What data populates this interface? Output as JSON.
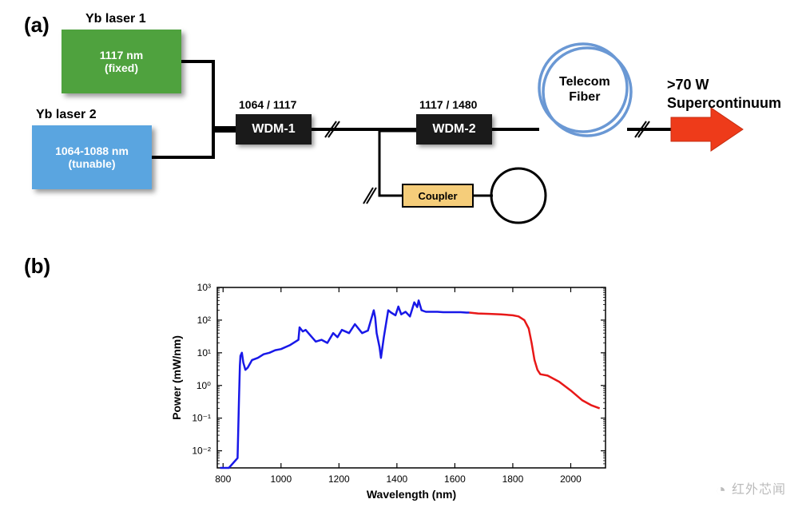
{
  "panel_a": {
    "label": "(a)",
    "laser1": {
      "title": "Yb laser 1",
      "line1": "1117 nm",
      "line2": "(fixed)",
      "color": "#4fa23e"
    },
    "laser2": {
      "title": "Yb laser 2",
      "line1": "1064-1088 nm",
      "line2": "(tunable)",
      "color": "#5aa5e0"
    },
    "wdm1": {
      "label": "WDM-1",
      "ratio": "1064 / 1117"
    },
    "wdm2": {
      "label": "WDM-2",
      "ratio": "1117 / 1480"
    },
    "coupler": "Coupler",
    "telecom": "Telecom\nFiber",
    "output_line1": ">70 W",
    "output_line2": "Supercontinuum",
    "arrow_color": "#ee3b1a",
    "fiber_color": "#6a98d4",
    "line_color": "#000000"
  },
  "panel_b": {
    "label": "(b)",
    "chart": {
      "type": "line",
      "xlabel": "Wavelength (nm)",
      "ylabel": "Power (mW/nm)",
      "xlim": [
        780,
        2120
      ],
      "ylim": [
        0.003,
        1000
      ],
      "yscale": "log",
      "xtick_start": 800,
      "xtick_step": 200,
      "xtick_end": 2000,
      "yticks": [
        0.01,
        0.1,
        1,
        10,
        100,
        1000
      ],
      "ytick_labels": [
        "10⁻²",
        "10⁻¹",
        "10⁰",
        "10¹",
        "10²",
        "10³"
      ],
      "label_fontsize": 14,
      "tick_fontsize": 12,
      "axis_color": "#000000",
      "background_color": "#ffffff",
      "line_width": 2.5,
      "series": [
        {
          "name": "blue",
          "color": "#1818e8",
          "points": [
            [
              790,
              0.003
            ],
            [
              820,
              0.003
            ],
            [
              850,
              0.006
            ],
            [
              855,
              0.4
            ],
            [
              858,
              4
            ],
            [
              860,
              8
            ],
            [
              865,
              10
            ],
            [
              870,
              5
            ],
            [
              877,
              3
            ],
            [
              885,
              3.5
            ],
            [
              900,
              6
            ],
            [
              920,
              7
            ],
            [
              940,
              9
            ],
            [
              960,
              10
            ],
            [
              980,
              12
            ],
            [
              1000,
              13
            ],
            [
              1030,
              17
            ],
            [
              1060,
              25
            ],
            [
              1064,
              60
            ],
            [
              1075,
              45
            ],
            [
              1085,
              50
            ],
            [
              1100,
              35
            ],
            [
              1120,
              22
            ],
            [
              1140,
              25
            ],
            [
              1160,
              20
            ],
            [
              1180,
              40
            ],
            [
              1195,
              30
            ],
            [
              1210,
              50
            ],
            [
              1235,
              40
            ],
            [
              1255,
              75
            ],
            [
              1280,
              40
            ],
            [
              1300,
              48
            ],
            [
              1320,
              200
            ],
            [
              1325,
              120
            ],
            [
              1330,
              40
            ],
            [
              1340,
              15
            ],
            [
              1345,
              7
            ],
            [
              1355,
              30
            ],
            [
              1370,
              200
            ],
            [
              1380,
              170
            ],
            [
              1395,
              140
            ],
            [
              1405,
              260
            ],
            [
              1415,
              150
            ],
            [
              1430,
              180
            ],
            [
              1445,
              130
            ],
            [
              1460,
              350
            ],
            [
              1470,
              250
            ],
            [
              1475,
              400
            ],
            [
              1485,
              200
            ],
            [
              1500,
              180
            ],
            [
              1520,
              180
            ],
            [
              1540,
              180
            ],
            [
              1560,
              175
            ],
            [
              1580,
              175
            ],
            [
              1600,
              175
            ],
            [
              1620,
              175
            ],
            [
              1640,
              170
            ],
            [
              1650,
              170
            ]
          ]
        },
        {
          "name": "red",
          "color": "#e81818",
          "points": [
            [
              1650,
              170
            ],
            [
              1680,
              160
            ],
            [
              1720,
              155
            ],
            [
              1760,
              150
            ],
            [
              1800,
              140
            ],
            [
              1820,
              130
            ],
            [
              1840,
              100
            ],
            [
              1855,
              55
            ],
            [
              1865,
              20
            ],
            [
              1875,
              6
            ],
            [
              1885,
              3
            ],
            [
              1895,
              2.2
            ],
            [
              1920,
              2
            ],
            [
              1960,
              1.3
            ],
            [
              2000,
              0.7
            ],
            [
              2040,
              0.35
            ],
            [
              2070,
              0.25
            ],
            [
              2100,
              0.2
            ]
          ]
        }
      ]
    }
  },
  "watermark": "红外芯闻"
}
